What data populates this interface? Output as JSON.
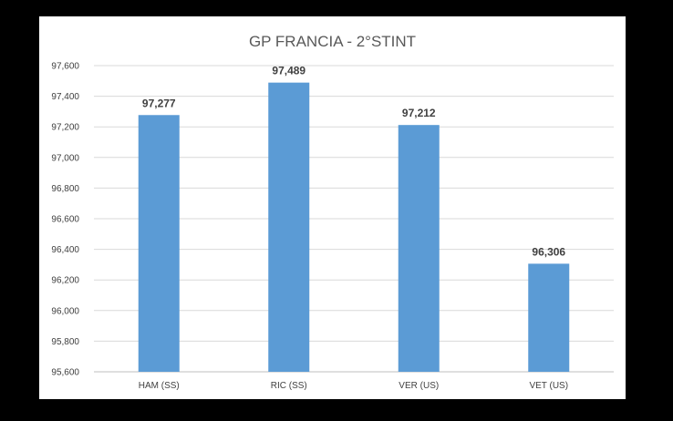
{
  "chart_data": {
    "type": "bar",
    "title": "GP FRANCIA - 2°STINT",
    "xlabel": "",
    "ylabel": "",
    "categories": [
      "HAM (SS)",
      "RIC (SS)",
      "VER (US)",
      "VET (US)"
    ],
    "values": [
      97.277,
      97.489,
      97.212,
      96.306
    ],
    "value_labels": [
      "97,277",
      "97,489",
      "97,212",
      "96,306"
    ],
    "ylim": [
      95.6,
      97.6
    ],
    "yticks": [
      95.6,
      95.8,
      96.0,
      96.2,
      96.4,
      96.6,
      96.8,
      97.0,
      97.2,
      97.4,
      97.6
    ],
    "ytick_labels": [
      "95,600",
      "95,800",
      "96,000",
      "96,200",
      "96,400",
      "96,600",
      "96,800",
      "97,000",
      "97,200",
      "97,400",
      "97,600"
    ],
    "grid": true,
    "legend": "none",
    "colors": {
      "bar": "#5b9bd5",
      "grid": "#d9d9d9",
      "axis": "#bfbfbf",
      "text": "#404040",
      "title": "#595959",
      "panel": "#ffffff",
      "background": "#000000"
    }
  }
}
